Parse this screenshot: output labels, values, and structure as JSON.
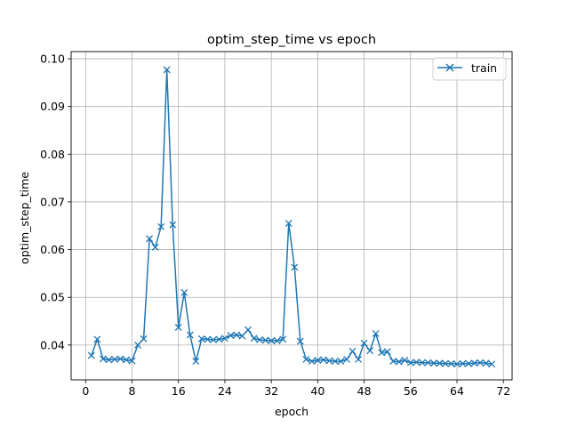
{
  "chart_data": {
    "type": "line",
    "title": "optim_step_time vs epoch",
    "xlabel": "epoch",
    "ylabel": "optim_step_time",
    "xlim": [
      -2.5,
      73.5
    ],
    "ylim": [
      0.0327,
      0.1015
    ],
    "xticks": [
      0,
      8,
      16,
      24,
      32,
      40,
      48,
      56,
      64,
      72
    ],
    "yticks": [
      0.04,
      0.05,
      0.06,
      0.07,
      0.08,
      0.09,
      0.1
    ],
    "ytick_labels": [
      "0.04",
      "0.05",
      "0.06",
      "0.07",
      "0.08",
      "0.09",
      "0.10"
    ],
    "grid": true,
    "legend_position": "top-right",
    "colors": {
      "line": "#1f77b4",
      "grid": "#b0b0b0",
      "axis": "#000000"
    },
    "series": [
      {
        "name": "train",
        "marker": "x",
        "x": [
          1,
          2,
          3,
          4,
          5,
          6,
          7,
          8,
          9,
          10,
          11,
          12,
          13,
          14,
          15,
          16,
          17,
          18,
          19,
          20,
          21,
          22,
          23,
          24,
          25,
          26,
          27,
          28,
          29,
          30,
          31,
          32,
          33,
          34,
          35,
          36,
          37,
          38,
          39,
          40,
          41,
          42,
          43,
          44,
          45,
          46,
          47,
          48,
          49,
          50,
          51,
          52,
          53,
          54,
          55,
          56,
          57,
          58,
          59,
          60,
          61,
          62,
          63,
          64,
          65,
          66,
          67,
          68,
          69,
          70
        ],
        "y": [
          0.0378,
          0.0412,
          0.0371,
          0.0369,
          0.037,
          0.0371,
          0.0369,
          0.0367,
          0.04,
          0.0413,
          0.0623,
          0.0605,
          0.0648,
          0.0977,
          0.0652,
          0.0437,
          0.051,
          0.0421,
          0.0366,
          0.0413,
          0.0412,
          0.0411,
          0.0412,
          0.0414,
          0.042,
          0.0421,
          0.0419,
          0.0432,
          0.0414,
          0.0411,
          0.041,
          0.0409,
          0.0409,
          0.0412,
          0.0655,
          0.0563,
          0.0408,
          0.037,
          0.0366,
          0.0368,
          0.0369,
          0.0367,
          0.0366,
          0.0366,
          0.037,
          0.0387,
          0.037,
          0.0404,
          0.0388,
          0.0424,
          0.0384,
          0.0386,
          0.0366,
          0.0365,
          0.0368,
          0.0363,
          0.0364,
          0.0363,
          0.0363,
          0.0362,
          0.0362,
          0.0361,
          0.0361,
          0.036,
          0.0361,
          0.0361,
          0.0362,
          0.0363,
          0.0362,
          0.036
        ]
      }
    ]
  }
}
